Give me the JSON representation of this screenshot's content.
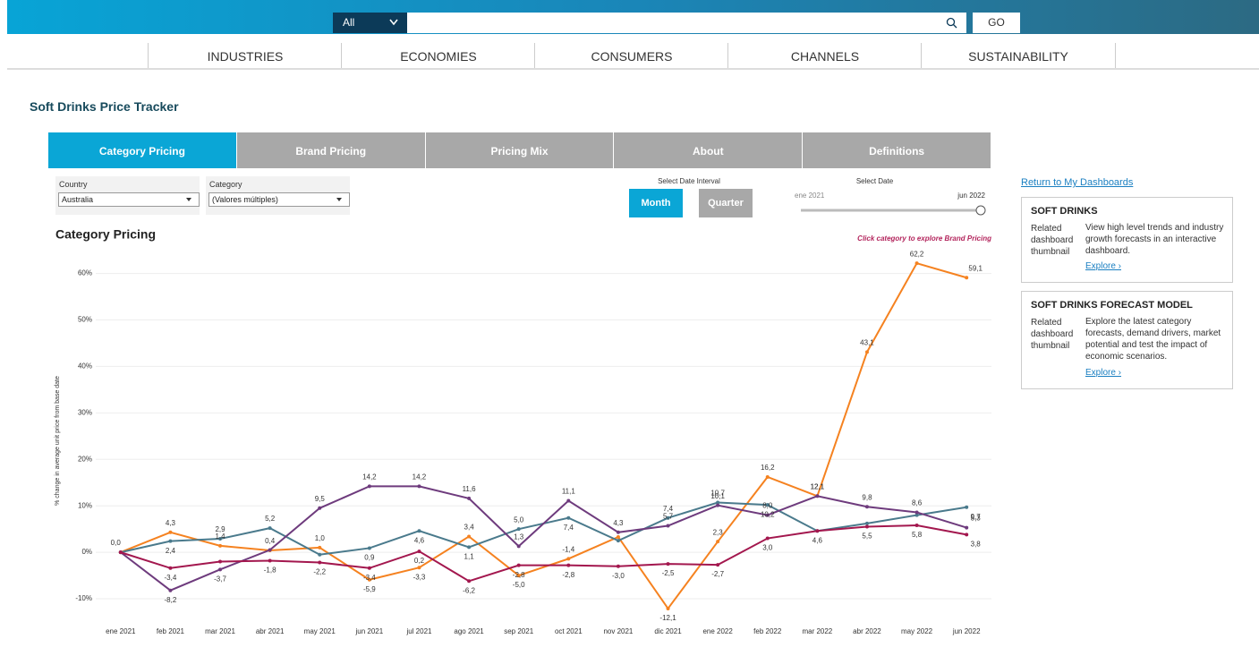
{
  "header": {
    "search_scope": "All",
    "go": "GO"
  },
  "nav": [
    "INDUSTRIES",
    "ECONOMIES",
    "CONSUMERS",
    "CHANNELS",
    "SUSTAINABILITY"
  ],
  "page_title": "Soft Drinks Price Tracker",
  "tabs": [
    "Category Pricing",
    "Brand Pricing",
    "Pricing Mix",
    "About",
    "Definitions"
  ],
  "filters": [
    {
      "label": "Country",
      "value": "Australia"
    },
    {
      "label": "Category",
      "value": "(Valores múltiples)"
    }
  ],
  "date_interval": {
    "label": "Select Date Interval",
    "options": [
      "Month",
      "Quarter"
    ]
  },
  "date_select": {
    "label": "Select Date",
    "start": "ene 2021",
    "end": "jun 2022"
  },
  "side": {
    "link": "Return to My Dashboards",
    "cards": [
      {
        "title": "SOFT DRINKS",
        "related": "Related dashboard thumbnail",
        "text": "View high level trends and industry growth forecasts in an interactive dashboard.",
        "link": "Explore ›"
      },
      {
        "title": "SOFT DRINKS FORECAST MODEL",
        "related": "Related dashboard thumbnail",
        "text": "Explore the latest category forecasts, demand drivers, market potential and test the impact of economic scenarios.",
        "link": "Explore ›"
      }
    ]
  },
  "chart_data": {
    "type": "line",
    "title": "Category Pricing",
    "annotation": "Click category to explore Brand Pricing",
    "y_label": "% change in average unit price from base date",
    "categories": [
      "ene 2021",
      "feb 2021",
      "mar 2021",
      "abr 2021",
      "may 2021",
      "jun 2021",
      "jul 2021",
      "ago 2021",
      "sep 2021",
      "oct 2021",
      "nov 2021",
      "dic 2021",
      "ene 2022",
      "feb 2022",
      "mar 2022",
      "abr 2022",
      "may 2022",
      "jun 2022"
    ],
    "ylim": [
      -15,
      63
    ],
    "yticks": [
      {
        "value": -10,
        "label": "-10%"
      },
      {
        "value": 0,
        "label": "0%"
      },
      {
        "value": 10,
        "label": "10%"
      },
      {
        "value": 20,
        "label": "20%"
      },
      {
        "value": 30,
        "label": "30%"
      },
      {
        "value": 40,
        "label": "40%"
      },
      {
        "value": 50,
        "label": "50%"
      },
      {
        "value": 60,
        "label": "60%"
      }
    ],
    "grid": true,
    "series": [
      {
        "color": "#f58220",
        "values": [
          0,
          4.3,
          1.4,
          0.4,
          1.0,
          -5.9,
          -3.3,
          3.4,
          -5.0,
          -1.4,
          3.3,
          -12.1,
          2.3,
          16.2,
          12.1,
          43.1,
          62.2,
          59.1
        ],
        "value_labels": [
          "0,0",
          "4,3",
          "1,4",
          "0,4",
          "1,0",
          "-5,9",
          "-3,3",
          "3,4",
          "-5,0",
          "-1,4",
          null,
          "-12,1",
          "2,3",
          "16,2",
          "12,1",
          "43,1",
          "62,2",
          "59,1"
        ]
      },
      {
        "color": "#4a7a8c",
        "values": [
          0,
          2.4,
          2.9,
          5.2,
          -0.5,
          0.9,
          4.6,
          1.1,
          5.0,
          7.4,
          2.5,
          7.4,
          10.7,
          10.2,
          4.6,
          6.2,
          8.0,
          9.7
        ],
        "value_labels": [
          null,
          "2,4",
          "2,9",
          "5,2",
          null,
          "0,9",
          "4,6",
          "1,1",
          "5,0",
          "7,4",
          null,
          "7,4",
          "10,7",
          "10,2",
          "4,6",
          null,
          null,
          "9,7"
        ]
      },
      {
        "color": "#6e3b7d",
        "values": [
          0,
          -8.2,
          -3.7,
          0.5,
          9.5,
          14.2,
          14.2,
          11.6,
          1.3,
          11.1,
          4.3,
          5.7,
          10.1,
          8.0,
          12.1,
          9.8,
          8.6,
          5.3
        ],
        "value_labels": [
          null,
          "-8,2",
          "-3,7",
          null,
          "9,5",
          "14,2",
          "14,2",
          "11,6",
          "1,3",
          "11,1",
          "4,3",
          "5,7",
          "10,1",
          "8,0",
          "12,1",
          "9,8",
          "8,6",
          "5,3"
        ]
      },
      {
        "color": "#a3174e",
        "values": [
          0,
          -3.4,
          -2.0,
          -1.8,
          -2.2,
          -3.4,
          0.2,
          -6.2,
          -2.8,
          -2.8,
          -3.0,
          -2.5,
          -2.7,
          3.0,
          4.6,
          5.5,
          5.8,
          3.8
        ],
        "value_labels": [
          null,
          "-3,4",
          null,
          "-1,8",
          "-2,2",
          "-3,4",
          "0,2",
          "-6,2",
          "-2,8",
          "-2,8",
          "-3,0",
          "-2,5",
          "-2,7",
          "3,0",
          null,
          "5,5",
          "5,8",
          "3,8"
        ]
      }
    ]
  }
}
